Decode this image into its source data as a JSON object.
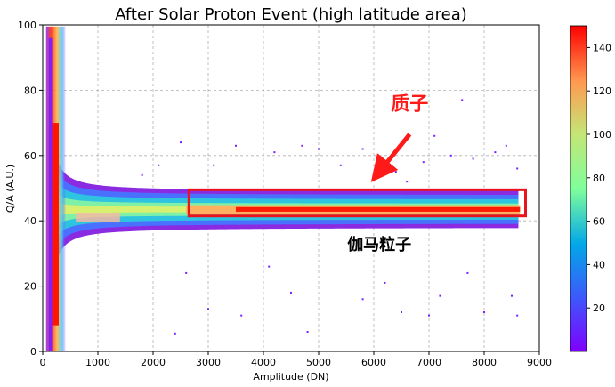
{
  "chart_data": {
    "type": "heatmap",
    "title": "After Solar Proton Event (high latitude area)",
    "xlabel": "Amplitude (DN)",
    "ylabel": "Q/A (A.U.)",
    "xlim": [
      0,
      9000
    ],
    "ylim": [
      0,
      100
    ],
    "x_ticks": [
      "0",
      "1000",
      "2000",
      "3000",
      "4000",
      "5000",
      "6000",
      "7000",
      "8000",
      "9000"
    ],
    "y_ticks": [
      "0",
      "20",
      "40",
      "60",
      "80",
      "100"
    ],
    "grid": true,
    "colorbar": {
      "min": 0,
      "max": 150,
      "ticks": [
        "20",
        "40",
        "60",
        "80",
        "100",
        "120",
        "140"
      ],
      "colormap": "rainbow"
    },
    "annotations": [
      {
        "text": "质子",
        "color": "#ff1a1a",
        "x": 6650,
        "y": 74
      },
      {
        "text": "伽马粒子",
        "color": "#000000",
        "x": 6100,
        "y": 31
      }
    ],
    "highlight_box": {
      "x": [
        2650,
        8750
      ],
      "y": [
        41.5,
        49.5
      ],
      "color": "#e8141e"
    },
    "arrow": {
      "from": [
        6650,
        66.5
      ],
      "to": [
        6100,
        55
      ],
      "color": "#ff1a1a"
    },
    "band_center_qa": 43.5,
    "band_x_range": [
      2600,
      8650
    ]
  }
}
